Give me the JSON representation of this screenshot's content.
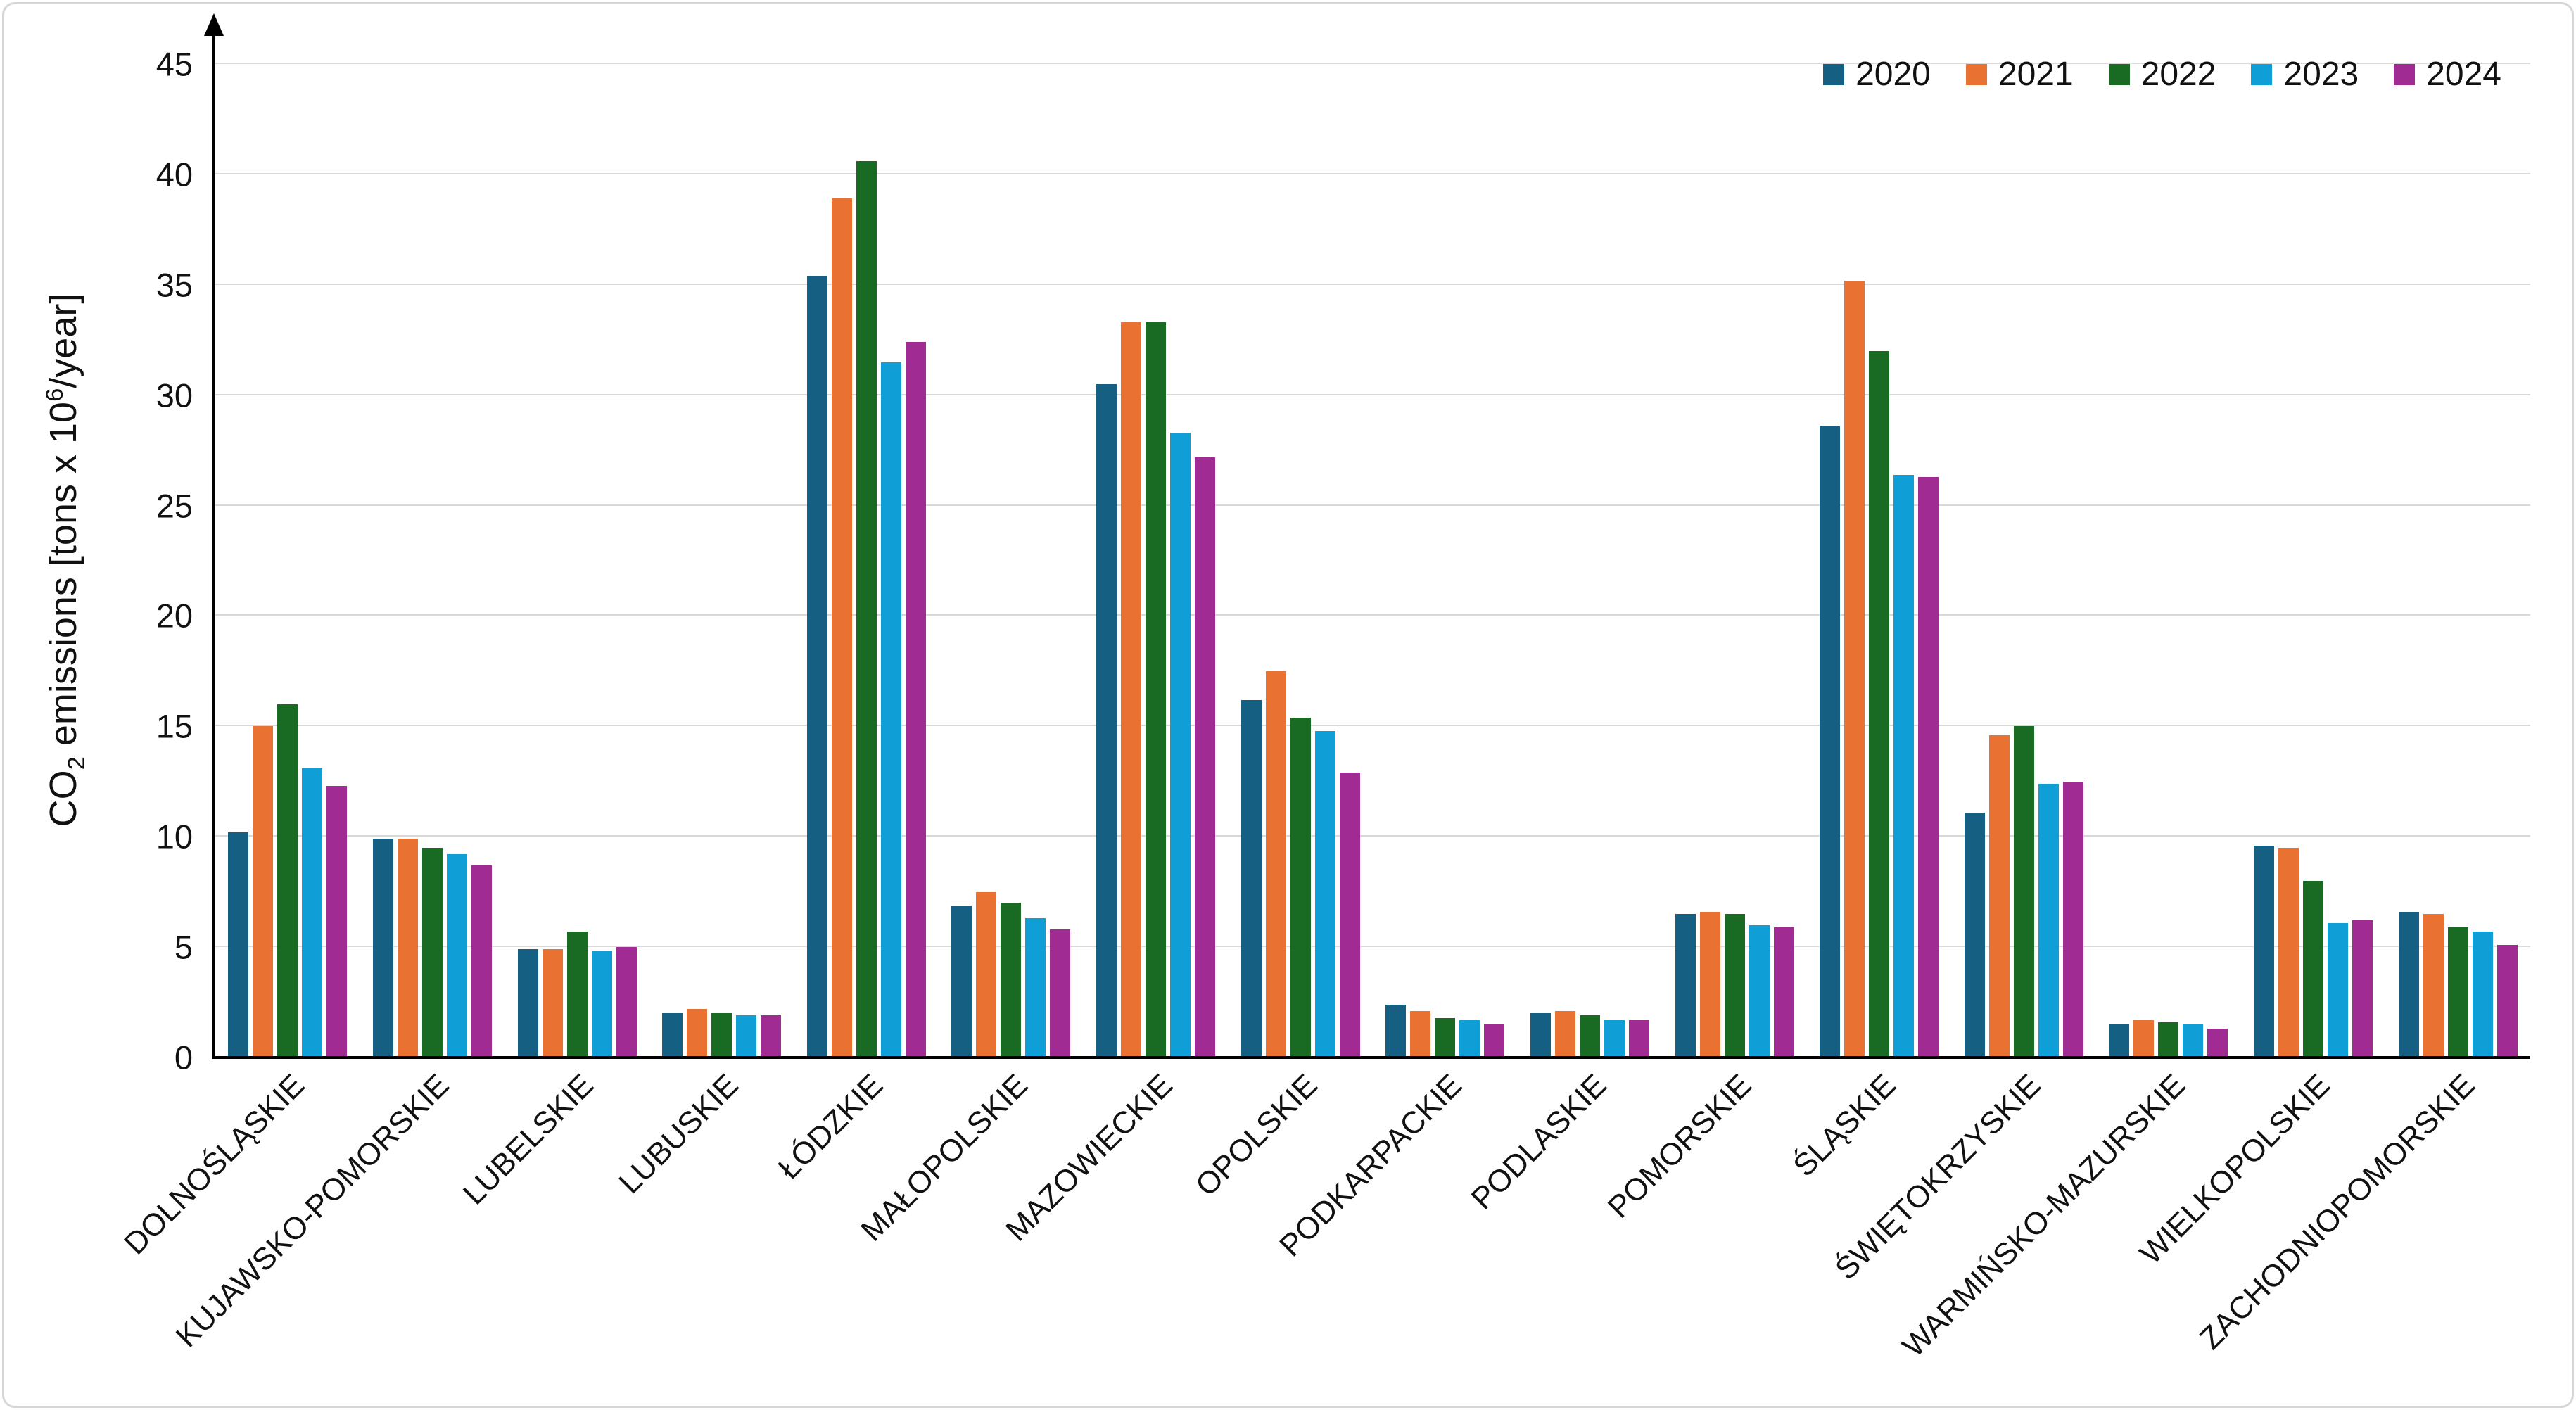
{
  "figure": {
    "background": "#FFFFFF",
    "border_color": "#D6D6D6"
  },
  "chart_data": {
    "type": "bar",
    "title": "",
    "xlabel": "",
    "ylabel": "CO₂ emissions [tons x 10⁶/year]",
    "ylabel_parts": {
      "pre": "CO",
      "sub": "2",
      "mid": " emissions [tons x 10",
      "sup": "6",
      "post": "/year]"
    },
    "ylim": [
      0,
      45
    ],
    "ytick_step": 5,
    "yticks": [
      0,
      5,
      10,
      15,
      20,
      25,
      30,
      35,
      40,
      45
    ],
    "grid": "horizontal",
    "gridline_color": "#D9D9D9",
    "axis_color": "#000000",
    "legend_position": "top-right",
    "categories": [
      "DOLNOŚLĄSKIE",
      "KUJAWSKO-POMORSKIE",
      "LUBELSKIE",
      "LUBUSKIE",
      "ŁÓDZKIE",
      "MAŁOPOLSKIE",
      "MAZOWIECKIE",
      "OPOLSKIE",
      "PODKARPACKIE",
      "PODLASKIE",
      "POMORSKIE",
      "ŚLĄSKIE",
      "ŚWIĘTOKRZYSKIE",
      "WARMIŃSKO-MAZURSKIE",
      "WIELKOPOLSKIE",
      "ZACHODNIOPOMORSKIE"
    ],
    "series": [
      {
        "name": "2020",
        "color": "#156082",
        "values": [
          10.2,
          9.9,
          4.9,
          2.0,
          35.4,
          6.9,
          30.5,
          16.2,
          2.4,
          2.0,
          6.5,
          28.6,
          11.1,
          1.5,
          9.6,
          6.6
        ]
      },
      {
        "name": "2021",
        "color": "#E97132",
        "values": [
          15.0,
          9.9,
          4.9,
          2.2,
          38.9,
          7.5,
          33.3,
          17.5,
          2.1,
          2.1,
          6.6,
          35.2,
          14.6,
          1.7,
          9.5,
          6.5
        ]
      },
      {
        "name": "2022",
        "color": "#196B24",
        "values": [
          16.0,
          9.5,
          5.7,
          2.0,
          40.6,
          7.0,
          33.3,
          15.4,
          1.8,
          1.9,
          6.5,
          32.0,
          15.0,
          1.6,
          8.0,
          5.9
        ]
      },
      {
        "name": "2023",
        "color": "#0F9ED5",
        "values": [
          13.1,
          9.2,
          4.8,
          1.9,
          31.5,
          6.3,
          28.3,
          14.8,
          1.7,
          1.7,
          6.0,
          26.4,
          12.4,
          1.5,
          6.1,
          5.7
        ]
      },
      {
        "name": "2024",
        "color": "#A02B93",
        "values": [
          12.3,
          8.7,
          5.0,
          1.9,
          32.4,
          5.8,
          27.2,
          12.9,
          1.5,
          1.7,
          5.9,
          26.3,
          12.5,
          1.3,
          6.2,
          5.1
        ]
      }
    ]
  }
}
